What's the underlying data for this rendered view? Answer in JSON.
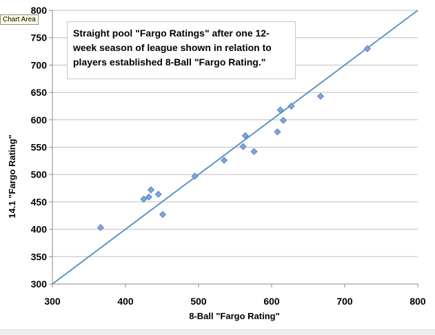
{
  "tooltip": "Chart Area",
  "annotation": {
    "lines": [
      "Straight pool \"Fargo Ratings\" after one  12-",
      "week season of league shown in relation to",
      "players established 8-Ball \"Fargo Rating.\""
    ]
  },
  "chart_data": {
    "type": "scatter",
    "xlabel": "8-Ball \"Fargo Rating\"",
    "ylabel": "14.1 \"Fargo Rating\"",
    "xlim": [
      300,
      800
    ],
    "ylim": [
      300,
      800
    ],
    "x_ticks": [
      "300",
      "400",
      "500",
      "600",
      "700",
      "800"
    ],
    "y_ticks": [
      "300",
      "350",
      "400",
      "450",
      "500",
      "550",
      "600",
      "650",
      "700",
      "750",
      "800"
    ],
    "grid": "horizontal",
    "marker_color": "#7ea6e0",
    "marker_edge": "#4a76b5",
    "line_color": "#5b93c7",
    "reference_line": [
      [
        300,
        300
      ],
      [
        800,
        800
      ]
    ],
    "points": [
      {
        "x": 366,
        "y": 403
      },
      {
        "x": 425,
        "y": 455
      },
      {
        "x": 432,
        "y": 459
      },
      {
        "x": 435,
        "y": 472
      },
      {
        "x": 445,
        "y": 464
      },
      {
        "x": 451,
        "y": 427
      },
      {
        "x": 495,
        "y": 497
      },
      {
        "x": 535,
        "y": 526
      },
      {
        "x": 561,
        "y": 551
      },
      {
        "x": 564,
        "y": 571
      },
      {
        "x": 576,
        "y": 542
      },
      {
        "x": 608,
        "y": 578
      },
      {
        "x": 612,
        "y": 618
      },
      {
        "x": 616,
        "y": 599
      },
      {
        "x": 627,
        "y": 625
      },
      {
        "x": 667,
        "y": 643
      },
      {
        "x": 731,
        "y": 730
      }
    ]
  }
}
